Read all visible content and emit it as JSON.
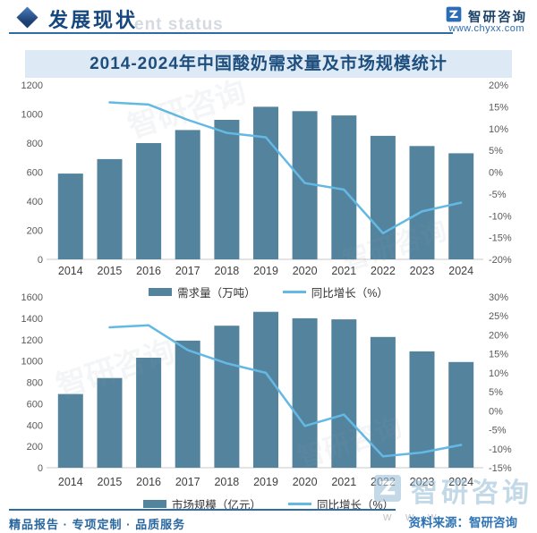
{
  "header": {
    "section_title": "发展现状",
    "ghost_text": "ent status",
    "brand": "智研咨询",
    "website": "www.chyxx.com"
  },
  "title": "2014-2024年中国酸奶需求量及市场规模统计",
  "chart_data": [
    {
      "type": "bar+line",
      "categories": [
        "2014",
        "2015",
        "2016",
        "2017",
        "2018",
        "2019",
        "2020",
        "2021",
        "2022",
        "2023",
        "2024"
      ],
      "series": [
        {
          "name": "需求量（万吨）",
          "type": "bar",
          "axis": "left",
          "values": [
            590,
            690,
            800,
            890,
            960,
            1050,
            1020,
            990,
            850,
            780,
            730
          ]
        },
        {
          "name": "同比增长（%）",
          "type": "line",
          "axis": "right",
          "start_index": 1,
          "values": [
            16,
            15.5,
            12,
            9,
            8,
            -2.5,
            -4,
            -14,
            -9,
            -7
          ]
        }
      ],
      "left_axis": {
        "min": 0,
        "max": 1200,
        "step": 200
      },
      "right_axis": {
        "min": -20,
        "max": 20,
        "step": 5,
        "suffix": "%"
      },
      "legend_position": "bottom",
      "grid": false
    },
    {
      "type": "bar+line",
      "categories": [
        "2014",
        "2015",
        "2016",
        "2017",
        "2018",
        "2019",
        "2020",
        "2021",
        "2022",
        "2023",
        "2024"
      ],
      "series": [
        {
          "name": "市场规模（亿元）",
          "type": "bar",
          "axis": "left",
          "values": [
            690,
            840,
            1030,
            1190,
            1330,
            1460,
            1400,
            1390,
            1225,
            1090,
            990
          ]
        },
        {
          "name": "同比增长（%）",
          "type": "line",
          "axis": "right",
          "start_index": 1,
          "values": [
            22,
            22.5,
            16,
            12.5,
            10,
            -4,
            -1,
            -12,
            -11,
            -9
          ]
        }
      ],
      "left_axis": {
        "min": 0,
        "max": 1600,
        "step": 200
      },
      "right_axis": {
        "min": -15,
        "max": 30,
        "step": 5,
        "suffix": "%"
      },
      "legend_position": "bottom",
      "grid": false
    }
  ],
  "footer": {
    "tagline": "精品报告 · 专项定制 · 品质服务",
    "source": "资料来源：智研咨询"
  },
  "watermark": {
    "brand": "智研咨询",
    "ghost_www": "w w w ."
  },
  "colors": {
    "bar": "#54839e",
    "line": "#64b9e4",
    "accent_dark": "#1d4e7e",
    "band_bg": "#ddeaf5",
    "axis_text": "#595959",
    "footer_blue": "#2e74b5"
  }
}
